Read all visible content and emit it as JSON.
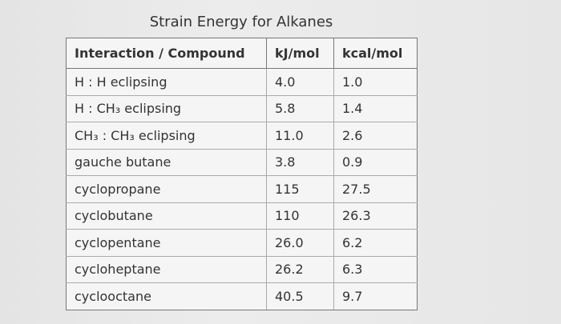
{
  "title": "Strain Energy for Alkanes",
  "table": {
    "header": [
      "Interaction / Compound",
      "kJ/mol",
      "kcal/mol"
    ],
    "rows": [
      [
        "H : H eclipsing",
        "4.0",
        "1.0"
      ],
      [
        "H : CH₃ eclipsing",
        "5.8",
        "1.4"
      ],
      [
        "CH₃ : CH₃ eclipsing",
        "11.0",
        "2.6"
      ],
      [
        "gauche butane",
        "3.8",
        "0.9"
      ],
      [
        "cyclopropane",
        "115",
        "27.5"
      ],
      [
        "cyclobutane",
        "110",
        "26.3"
      ],
      [
        "cyclopentane",
        "26.0",
        "6.2"
      ],
      [
        "cycloheptane",
        "26.2",
        "6.3"
      ],
      [
        "cyclooctane",
        "40.5",
        "9.7"
      ]
    ]
  }
}
